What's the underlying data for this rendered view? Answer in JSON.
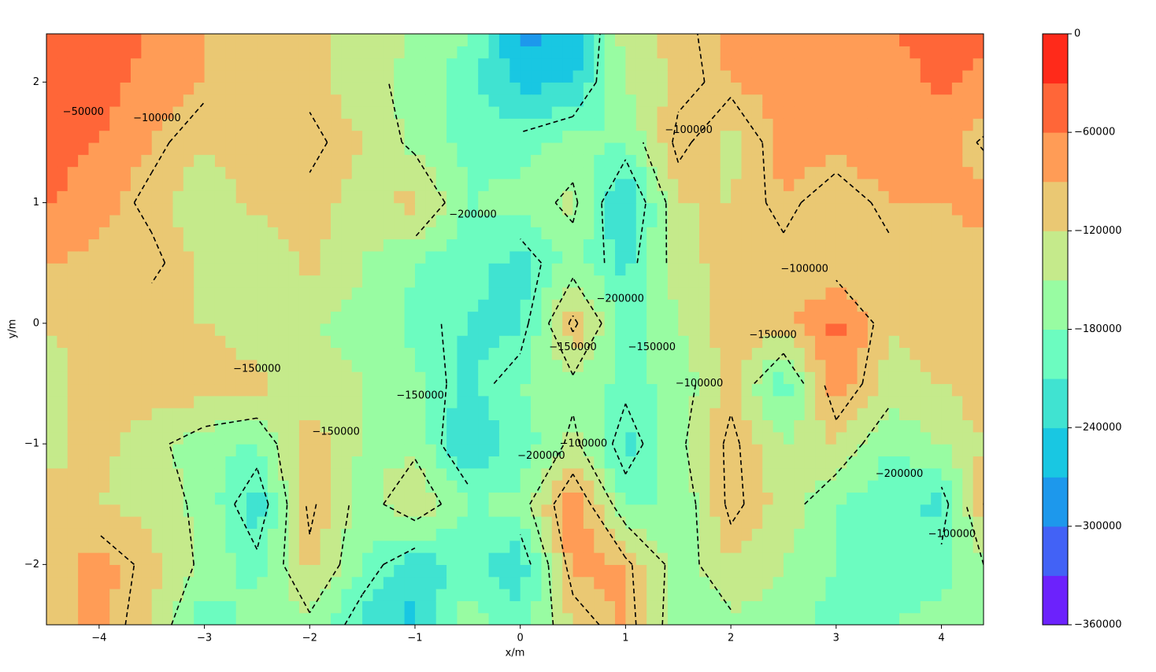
{
  "chart_data": {
    "type": "contourf",
    "xlabel": "x/m",
    "ylabel": "y/m",
    "xlim": [
      -4.5,
      4.4
    ],
    "ylim": [
      -2.5,
      2.4
    ],
    "xticks": [
      {
        "value": -4,
        "label": "−4"
      },
      {
        "value": -3,
        "label": "−3"
      },
      {
        "value": -2,
        "label": "−2"
      },
      {
        "value": -1,
        "label": "−1"
      },
      0,
      1,
      2,
      3,
      4
    ],
    "yticks": [
      {
        "value": -2,
        "label": "−2"
      },
      {
        "value": -1,
        "label": "−1"
      },
      0,
      1,
      2
    ],
    "x_grid": [
      -4.5,
      -4,
      -3.5,
      -3,
      -2.5,
      -2,
      -1.5,
      -1,
      -0.5,
      0,
      0.5,
      1,
      1.5,
      2,
      2.5,
      3,
      3.5,
      4,
      4.5
    ],
    "y_grid": [
      -2.5,
      -2,
      -1.5,
      -1,
      -0.5,
      0,
      0.5,
      1,
      1.5,
      2,
      2.5
    ],
    "z": [
      [
        -110000,
        -80000,
        -120000,
        -200000,
        -170000,
        -160000,
        -220000,
        -250000,
        -160000,
        -200000,
        -120000,
        -80000,
        -180000,
        -160000,
        -160000,
        -200000,
        -180000,
        -170000,
        -160000
      ],
      [
        -100000,
        -80000,
        -110000,
        -160000,
        -190000,
        -110000,
        -180000,
        -230000,
        -200000,
        -230000,
        -80000,
        -90000,
        -170000,
        -120000,
        -150000,
        -180000,
        -200000,
        -190000,
        -140000
      ],
      [
        -110000,
        -120000,
        -130000,
        -160000,
        -230000,
        -90000,
        -170000,
        -120000,
        -180000,
        -170000,
        -60000,
        -180000,
        -180000,
        -90000,
        -130000,
        -180000,
        -200000,
        -220000,
        -70000
      ],
      [
        -130000,
        -110000,
        -140000,
        -170000,
        -180000,
        -100000,
        -150000,
        -160000,
        -240000,
        -200000,
        -140000,
        -220000,
        -160000,
        -90000,
        -150000,
        -120000,
        -180000,
        -150000,
        -110000
      ],
      [
        -130000,
        -110000,
        -100000,
        -100000,
        -110000,
        -140000,
        -150000,
        -170000,
        -220000,
        -180000,
        -160000,
        -190000,
        -170000,
        -110000,
        -200000,
        -70000,
        -130000,
        -120000,
        -100000
      ],
      [
        -120000,
        -110000,
        -120000,
        -120000,
        -140000,
        -150000,
        -160000,
        -190000,
        -210000,
        -220000,
        -90000,
        -200000,
        -150000,
        -100000,
        -100000,
        -50000,
        -120000,
        -100000,
        -100000
      ],
      [
        -90000,
        -100000,
        -90000,
        -130000,
        -150000,
        -110000,
        -150000,
        -180000,
        -200000,
        -220000,
        -170000,
        -220000,
        -130000,
        -110000,
        -110000,
        -120000,
        -110000,
        -100000,
        -100000
      ],
      [
        -55000,
        -80000,
        -110000,
        -140000,
        -110000,
        -110000,
        -130000,
        -110000,
        -180000,
        -170000,
        -140000,
        -250000,
        -120000,
        -120000,
        -90000,
        -120000,
        -90000,
        -90000,
        -80000
      ],
      [
        -50000,
        -60000,
        -90000,
        -120000,
        -100000,
        -90000,
        -120000,
        -160000,
        -190000,
        -190000,
        -170000,
        -180000,
        -90000,
        -130000,
        -80000,
        -80000,
        -70000,
        -80000,
        -110000
      ],
      [
        -55000,
        -50000,
        -70000,
        -90000,
        -100000,
        -110000,
        -140000,
        -160000,
        -200000,
        -250000,
        -240000,
        -150000,
        -110000,
        -90000,
        -80000,
        -80000,
        -70000,
        -55000,
        -70000
      ],
      [
        -50000,
        -40000,
        -60000,
        -90000,
        -110000,
        -110000,
        -130000,
        -150000,
        -170000,
        -280000,
        -280000,
        -130000,
        -110000,
        -80000,
        -80000,
        -70000,
        -60000,
        -50000,
        -50000
      ]
    ],
    "levels": [
      -360000,
      -330000,
      -300000,
      -270000,
      -240000,
      -210000,
      -180000,
      -150000,
      -120000,
      -90000,
      -60000,
      -30000,
      0
    ],
    "colors": [
      "#6c22fc",
      "#4262f6",
      "#1d98ec",
      "#19c7e2",
      "#40e3d1",
      "#6cfcc0",
      "#98fca2",
      "#c5ea8b",
      "#eac873",
      "#ff9c56",
      "#ff6638",
      "#ff2a1a"
    ],
    "contour_levels": [
      -200000,
      -150000,
      -100000,
      -50000
    ],
    "contour_labels": [
      {
        "x": -4.15,
        "y": 1.75,
        "value": -50000,
        "label": "−50000"
      },
      {
        "x": -3.45,
        "y": 1.7,
        "value": -100000,
        "label": "−100000"
      },
      {
        "x": -0.45,
        "y": 0.9,
        "value": -200000,
        "label": "−200000"
      },
      {
        "x": 1.6,
        "y": 1.6,
        "value": -100000,
        "label": "−100000"
      },
      {
        "x": 2.7,
        "y": 0.45,
        "value": -100000,
        "label": "−100000"
      },
      {
        "x": 2.4,
        "y": -0.1,
        "value": -150000,
        "label": "−150000"
      },
      {
        "x": -2.5,
        "y": -0.38,
        "value": -150000,
        "label": "−150000"
      },
      {
        "x": 0.5,
        "y": -0.2,
        "value": -150000,
        "label": "−150000"
      },
      {
        "x": 1.25,
        "y": -0.2,
        "value": -150000,
        "label": "−150000"
      },
      {
        "x": 1.7,
        "y": -0.5,
        "value": -100000,
        "label": "−100000"
      },
      {
        "x": -0.95,
        "y": -0.6,
        "value": -150000,
        "label": "−150000"
      },
      {
        "x": -1.75,
        "y": -0.9,
        "value": -150000,
        "label": "−150000"
      },
      {
        "x": 0.2,
        "y": -1.1,
        "value": -200000,
        "label": "−200000"
      },
      {
        "x": 0.6,
        "y": -1.0,
        "value": -100000,
        "label": "−100000"
      },
      {
        "x": 0.95,
        "y": 0.2,
        "value": -200000,
        "label": "−200000"
      },
      {
        "x": 3.6,
        "y": -1.25,
        "value": -200000,
        "label": "−200000"
      },
      {
        "x": 4.1,
        "y": -1.75,
        "value": -100000,
        "label": "−100000"
      }
    ],
    "colorbar_ticks": [
      {
        "value": -360000,
        "label": "−360000"
      },
      {
        "value": -300000,
        "label": "−300000"
      },
      {
        "value": -240000,
        "label": "−240000"
      },
      {
        "value": -180000,
        "label": "−180000"
      },
      {
        "value": -120000,
        "label": "−120000"
      },
      {
        "value": -60000,
        "label": "−60000"
      },
      0
    ]
  }
}
